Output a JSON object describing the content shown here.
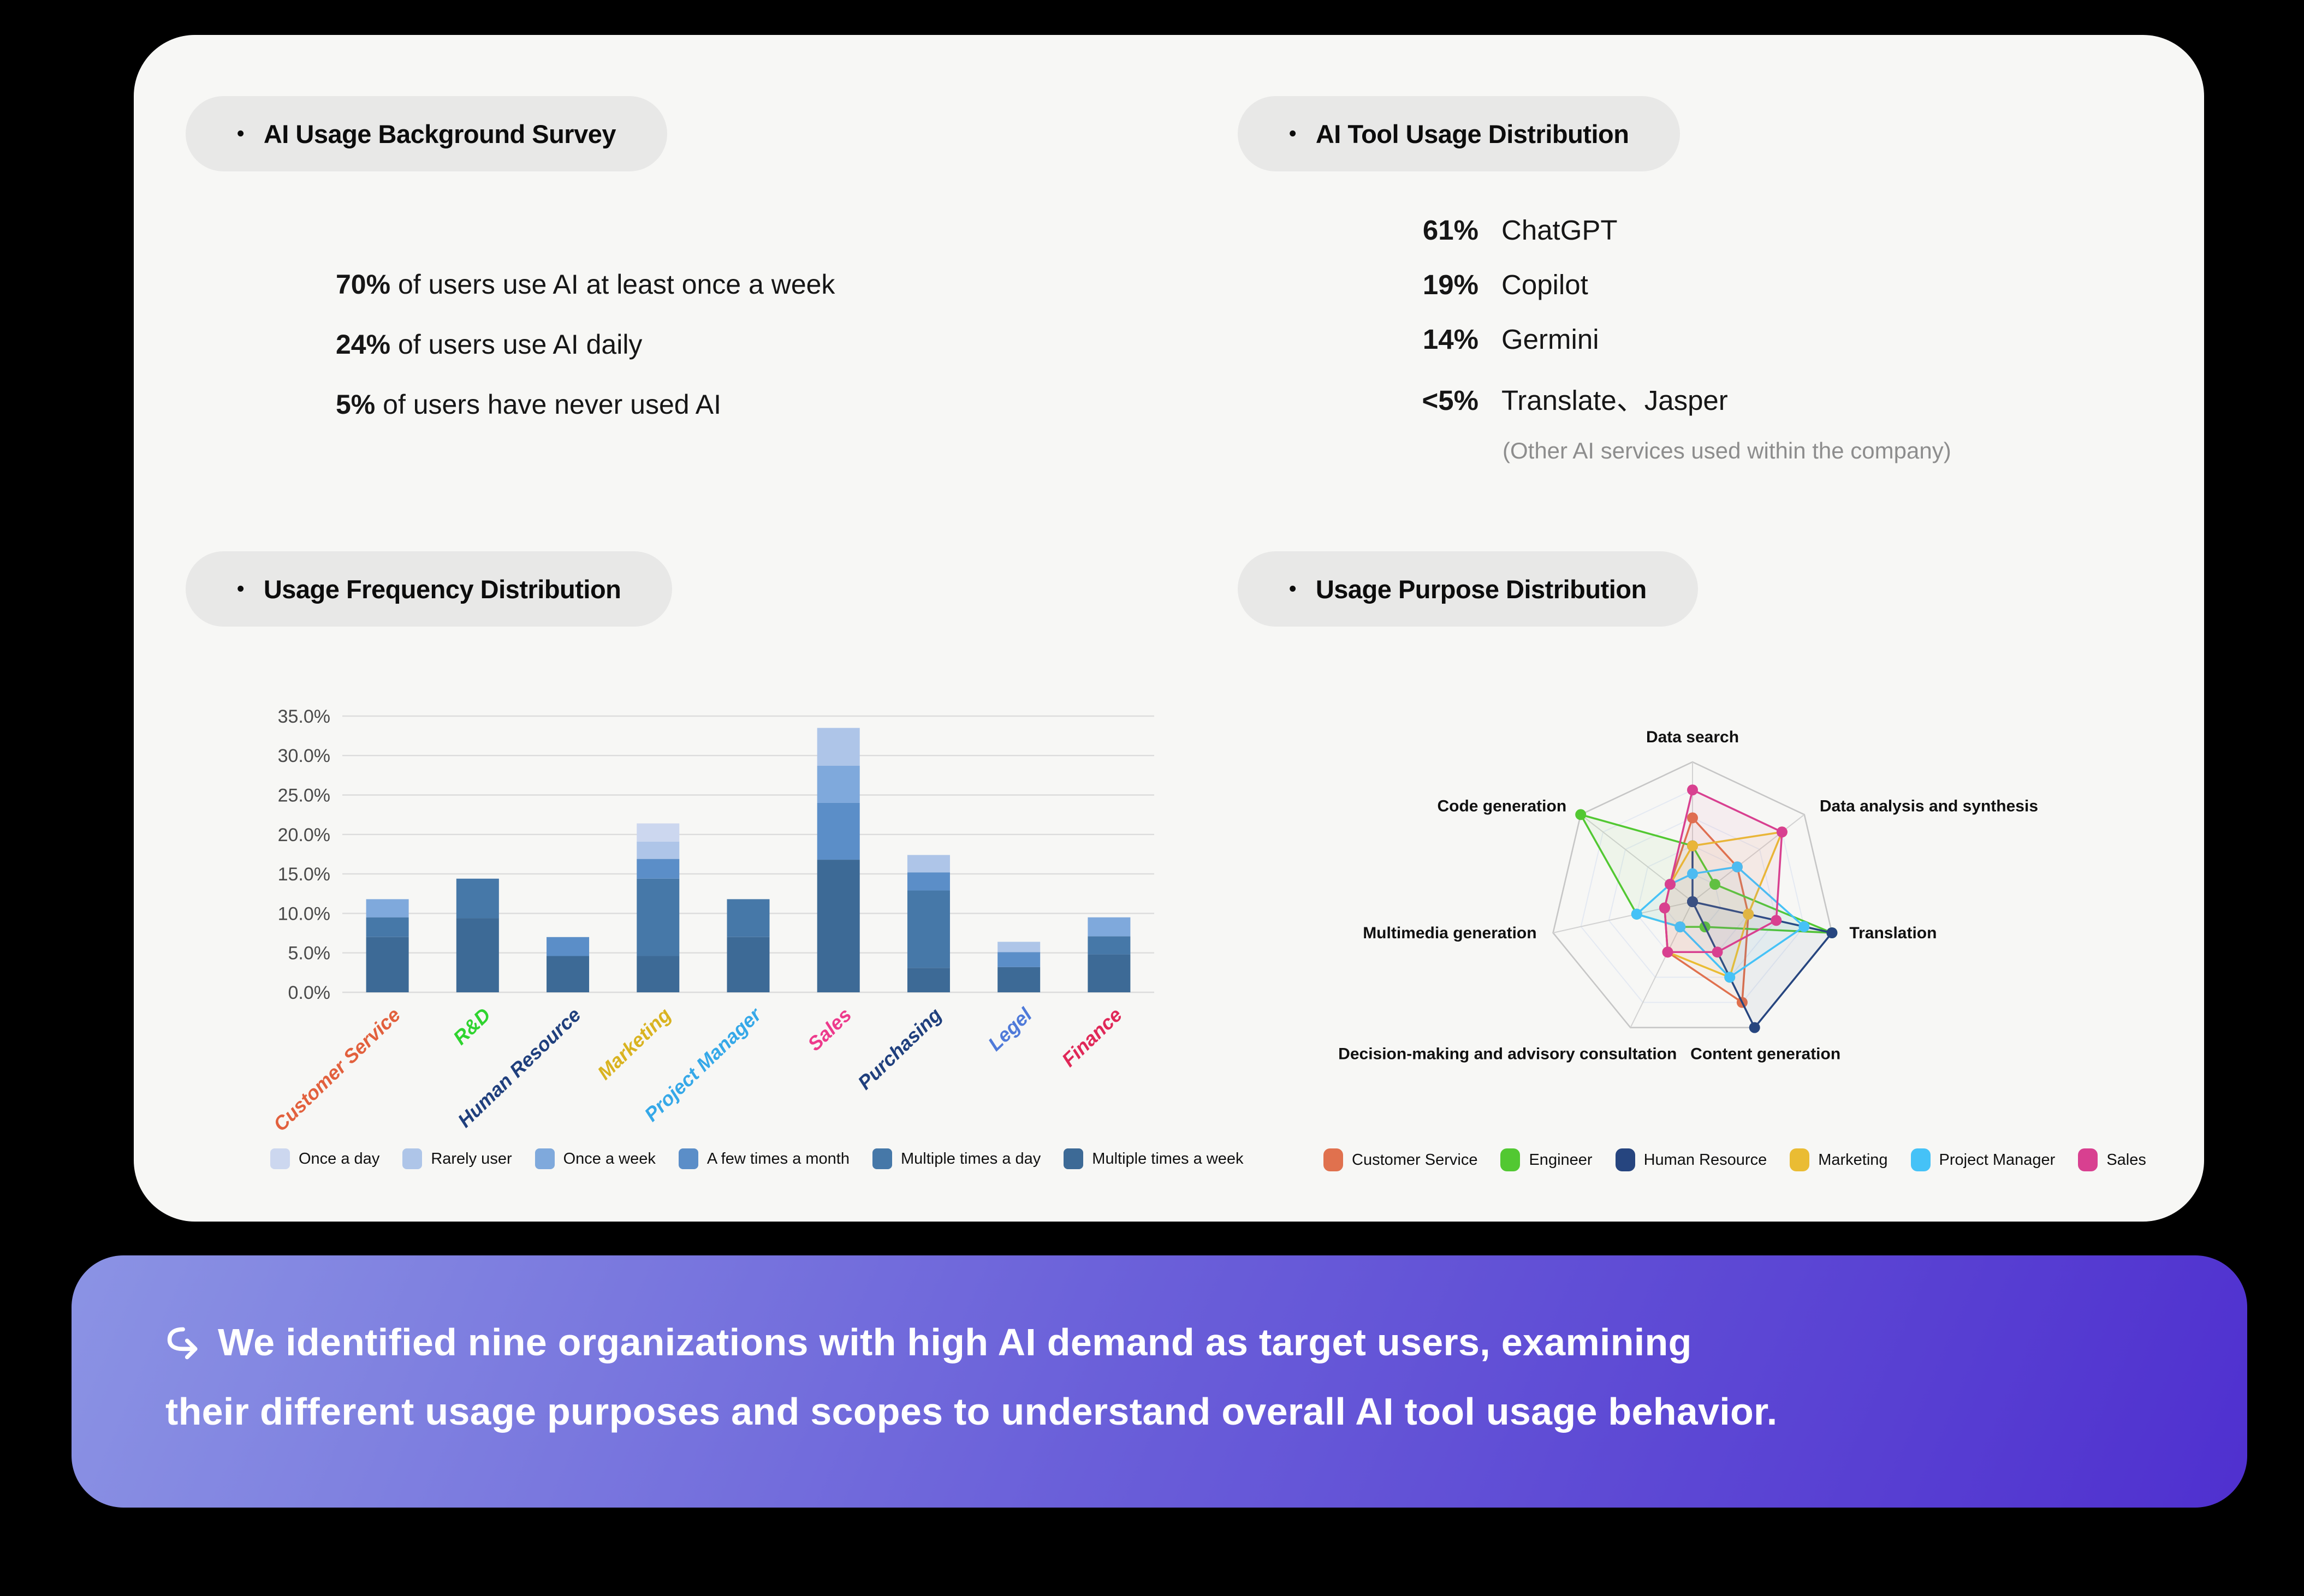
{
  "ui": {
    "bullet": "•"
  },
  "card": {
    "bg": "#f7f7f5"
  },
  "sections": {
    "survey": {
      "title": "AI Usage Background Survey",
      "stats": [
        {
          "value": "70%",
          "text": "of users use AI at least once a week"
        },
        {
          "value": "24%",
          "text": "of users use AI daily"
        },
        {
          "value": "5%",
          "text": "of users have never used AI"
        }
      ]
    },
    "tools": {
      "title": "AI Tool Usage Distribution",
      "items": [
        {
          "value": "61%",
          "name": "ChatGPT"
        },
        {
          "value": "19%",
          "name": "Copilot"
        },
        {
          "value": "14%",
          "name": "Germini"
        },
        {
          "value": "<5%",
          "name": "Translate、Jasper"
        }
      ],
      "note": "(Other AI services used within the company)"
    },
    "frequency": {
      "title": "Usage Frequency Distribution"
    },
    "purpose": {
      "title": "Usage Purpose Distribution"
    }
  },
  "banner": {
    "icon": "hook-arrow",
    "lines": [
      "We identified nine organizations with high AI demand as target users, examining",
      "their different usage purposes and scopes to understand overall AI tool usage behavior."
    ],
    "gradient": [
      "#8b93e4",
      "#6a5fd9",
      "#4f30cf"
    ]
  },
  "chart_data": [
    {
      "type": "bar",
      "stacked": true,
      "title": "Usage Frequency Distribution",
      "xlabel": "",
      "ylabel": "",
      "ylim": [
        0,
        35
      ],
      "ytick_step": 5,
      "grid": true,
      "legend_position": "bottom",
      "categories": [
        "Customer Service",
        "R&D",
        "Human Resource",
        "Marketing",
        "Project Manager",
        "Sales",
        "Purchasing",
        "Legel",
        "Finance"
      ],
      "category_colors": [
        "#e2603d",
        "#2fd42f",
        "#1f3f7d",
        "#d9b320",
        "#35a8e8",
        "#ed3a8c",
        "#1f3f7d",
        "#4f7ad9",
        "#e02858"
      ],
      "series": [
        {
          "name": "Once a day",
          "color": "#ccd7ef",
          "values": [
            0,
            0,
            0,
            2.3,
            0,
            0,
            0,
            0,
            0
          ]
        },
        {
          "name": "Rarely user",
          "color": "#aec5e8",
          "values": [
            0,
            0,
            0,
            2.2,
            0,
            4.8,
            2.2,
            1.3,
            0
          ]
        },
        {
          "name": "Once a week",
          "color": "#7fa9dc",
          "values": [
            2.3,
            0,
            0,
            0,
            0,
            4.7,
            0,
            0,
            2.4
          ]
        },
        {
          "name": "A few times a month",
          "color": "#5b8ec8",
          "values": [
            0,
            0,
            2.4,
            2.5,
            0,
            7.2,
            2.3,
            1.9,
            0
          ]
        },
        {
          "name": "Multiple times a day",
          "color": "#4678a8",
          "values": [
            2.5,
            5.0,
            0,
            9.8,
            4.8,
            0,
            9.8,
            0,
            2.3
          ]
        },
        {
          "name": "Multiple times a week",
          "color": "#3d6a96",
          "values": [
            7.0,
            9.4,
            4.6,
            4.6,
            7.0,
            16.8,
            3.1,
            3.2,
            4.8
          ]
        }
      ],
      "totals": [
        11.8,
        14.4,
        7.0,
        21.4,
        11.8,
        33.5,
        17.4,
        6.4,
        9.5
      ]
    },
    {
      "type": "radar",
      "title": "Usage Purpose Distribution",
      "axes": [
        "Data search",
        "Data analysis and synthesis",
        "Translation",
        "Content generation",
        "Decision-making and advisory consultation",
        "Multimedia generation",
        "Code generation"
      ],
      "rmax": 100,
      "rings": [
        20,
        40,
        60,
        80,
        100
      ],
      "legend_position": "bottom",
      "series": [
        {
          "name": "Customer Service",
          "color": "#e0714e",
          "values": [
            60,
            40,
            40,
            80,
            40,
            20,
            20
          ]
        },
        {
          "name": "Engineer",
          "color": "#52c832",
          "values": [
            40,
            20,
            100,
            20,
            20,
            40,
            100
          ]
        },
        {
          "name": "Human Resource",
          "color": "#26457f",
          "values": [
            40,
            0,
            100,
            100,
            0,
            0,
            0
          ]
        },
        {
          "name": "Marketing",
          "color": "#eabc33",
          "values": [
            40,
            80,
            40,
            60,
            40,
            20,
            20
          ]
        },
        {
          "name": "Project Manager",
          "color": "#45c2f7",
          "values": [
            20,
            40,
            80,
            60,
            20,
            40,
            20
          ]
        },
        {
          "name": "Sales",
          "color": "#d84090",
          "values": [
            80,
            80,
            60,
            40,
            40,
            20,
            20
          ]
        }
      ]
    }
  ]
}
